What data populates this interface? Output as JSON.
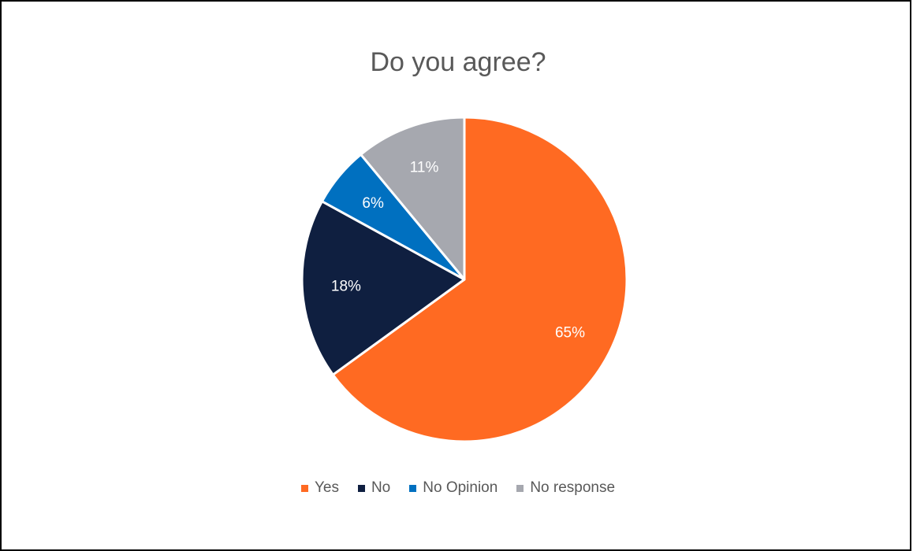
{
  "chart_data": {
    "type": "pie",
    "title": "Do you agree?",
    "categories": [
      "Yes",
      "No",
      "No Opinion",
      "No response"
    ],
    "values": [
      65,
      18,
      6,
      11
    ],
    "labels": [
      "65%",
      "18%",
      "6%",
      "11%"
    ],
    "colors": [
      "#FF6A22",
      "#0F1F40",
      "#0070C0",
      "#A6A8AF"
    ],
    "label_color": "#FFFFFF",
    "legend_position": "bottom"
  }
}
